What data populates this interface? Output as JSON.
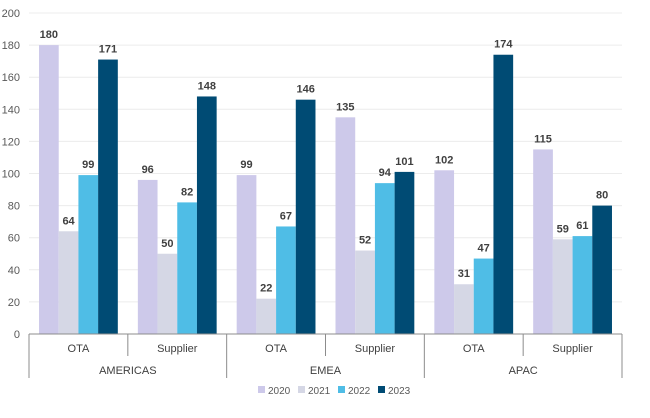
{
  "chart_data": {
    "type": "bar",
    "title": "",
    "xlabel": "",
    "ylabel": "",
    "ylim": [
      0,
      200
    ],
    "yticks": [
      0,
      20,
      40,
      60,
      80,
      100,
      120,
      140,
      160,
      180,
      200
    ],
    "grid": true,
    "legend_position": "bottom",
    "regions": [
      {
        "label": "AMERICAS",
        "categories": [
          "OTA",
          "Supplier"
        ]
      },
      {
        "label": "EMEA",
        "categories": [
          "OTA",
          "Supplier"
        ]
      },
      {
        "label": "APAC",
        "categories": [
          "OTA",
          "Supplier"
        ]
      }
    ],
    "categories": [
      "AMERICAS OTA",
      "AMERICAS Supplier",
      "EMEA OTA",
      "EMEA Supplier",
      "APAC OTA",
      "APAC Supplier"
    ],
    "series": [
      {
        "name": "2020",
        "color": "#cdc9ea",
        "values": [
          180,
          96,
          99,
          135,
          102,
          115
        ]
      },
      {
        "name": "2021",
        "color": "#d5d7e5",
        "values": [
          64,
          50,
          22,
          52,
          31,
          59
        ]
      },
      {
        "name": "2022",
        "color": "#4fbde6",
        "values": [
          99,
          82,
          67,
          94,
          47,
          61
        ]
      },
      {
        "name": "2023",
        "color": "#004b74",
        "values": [
          171,
          148,
          146,
          101,
          174,
          80
        ]
      }
    ]
  }
}
